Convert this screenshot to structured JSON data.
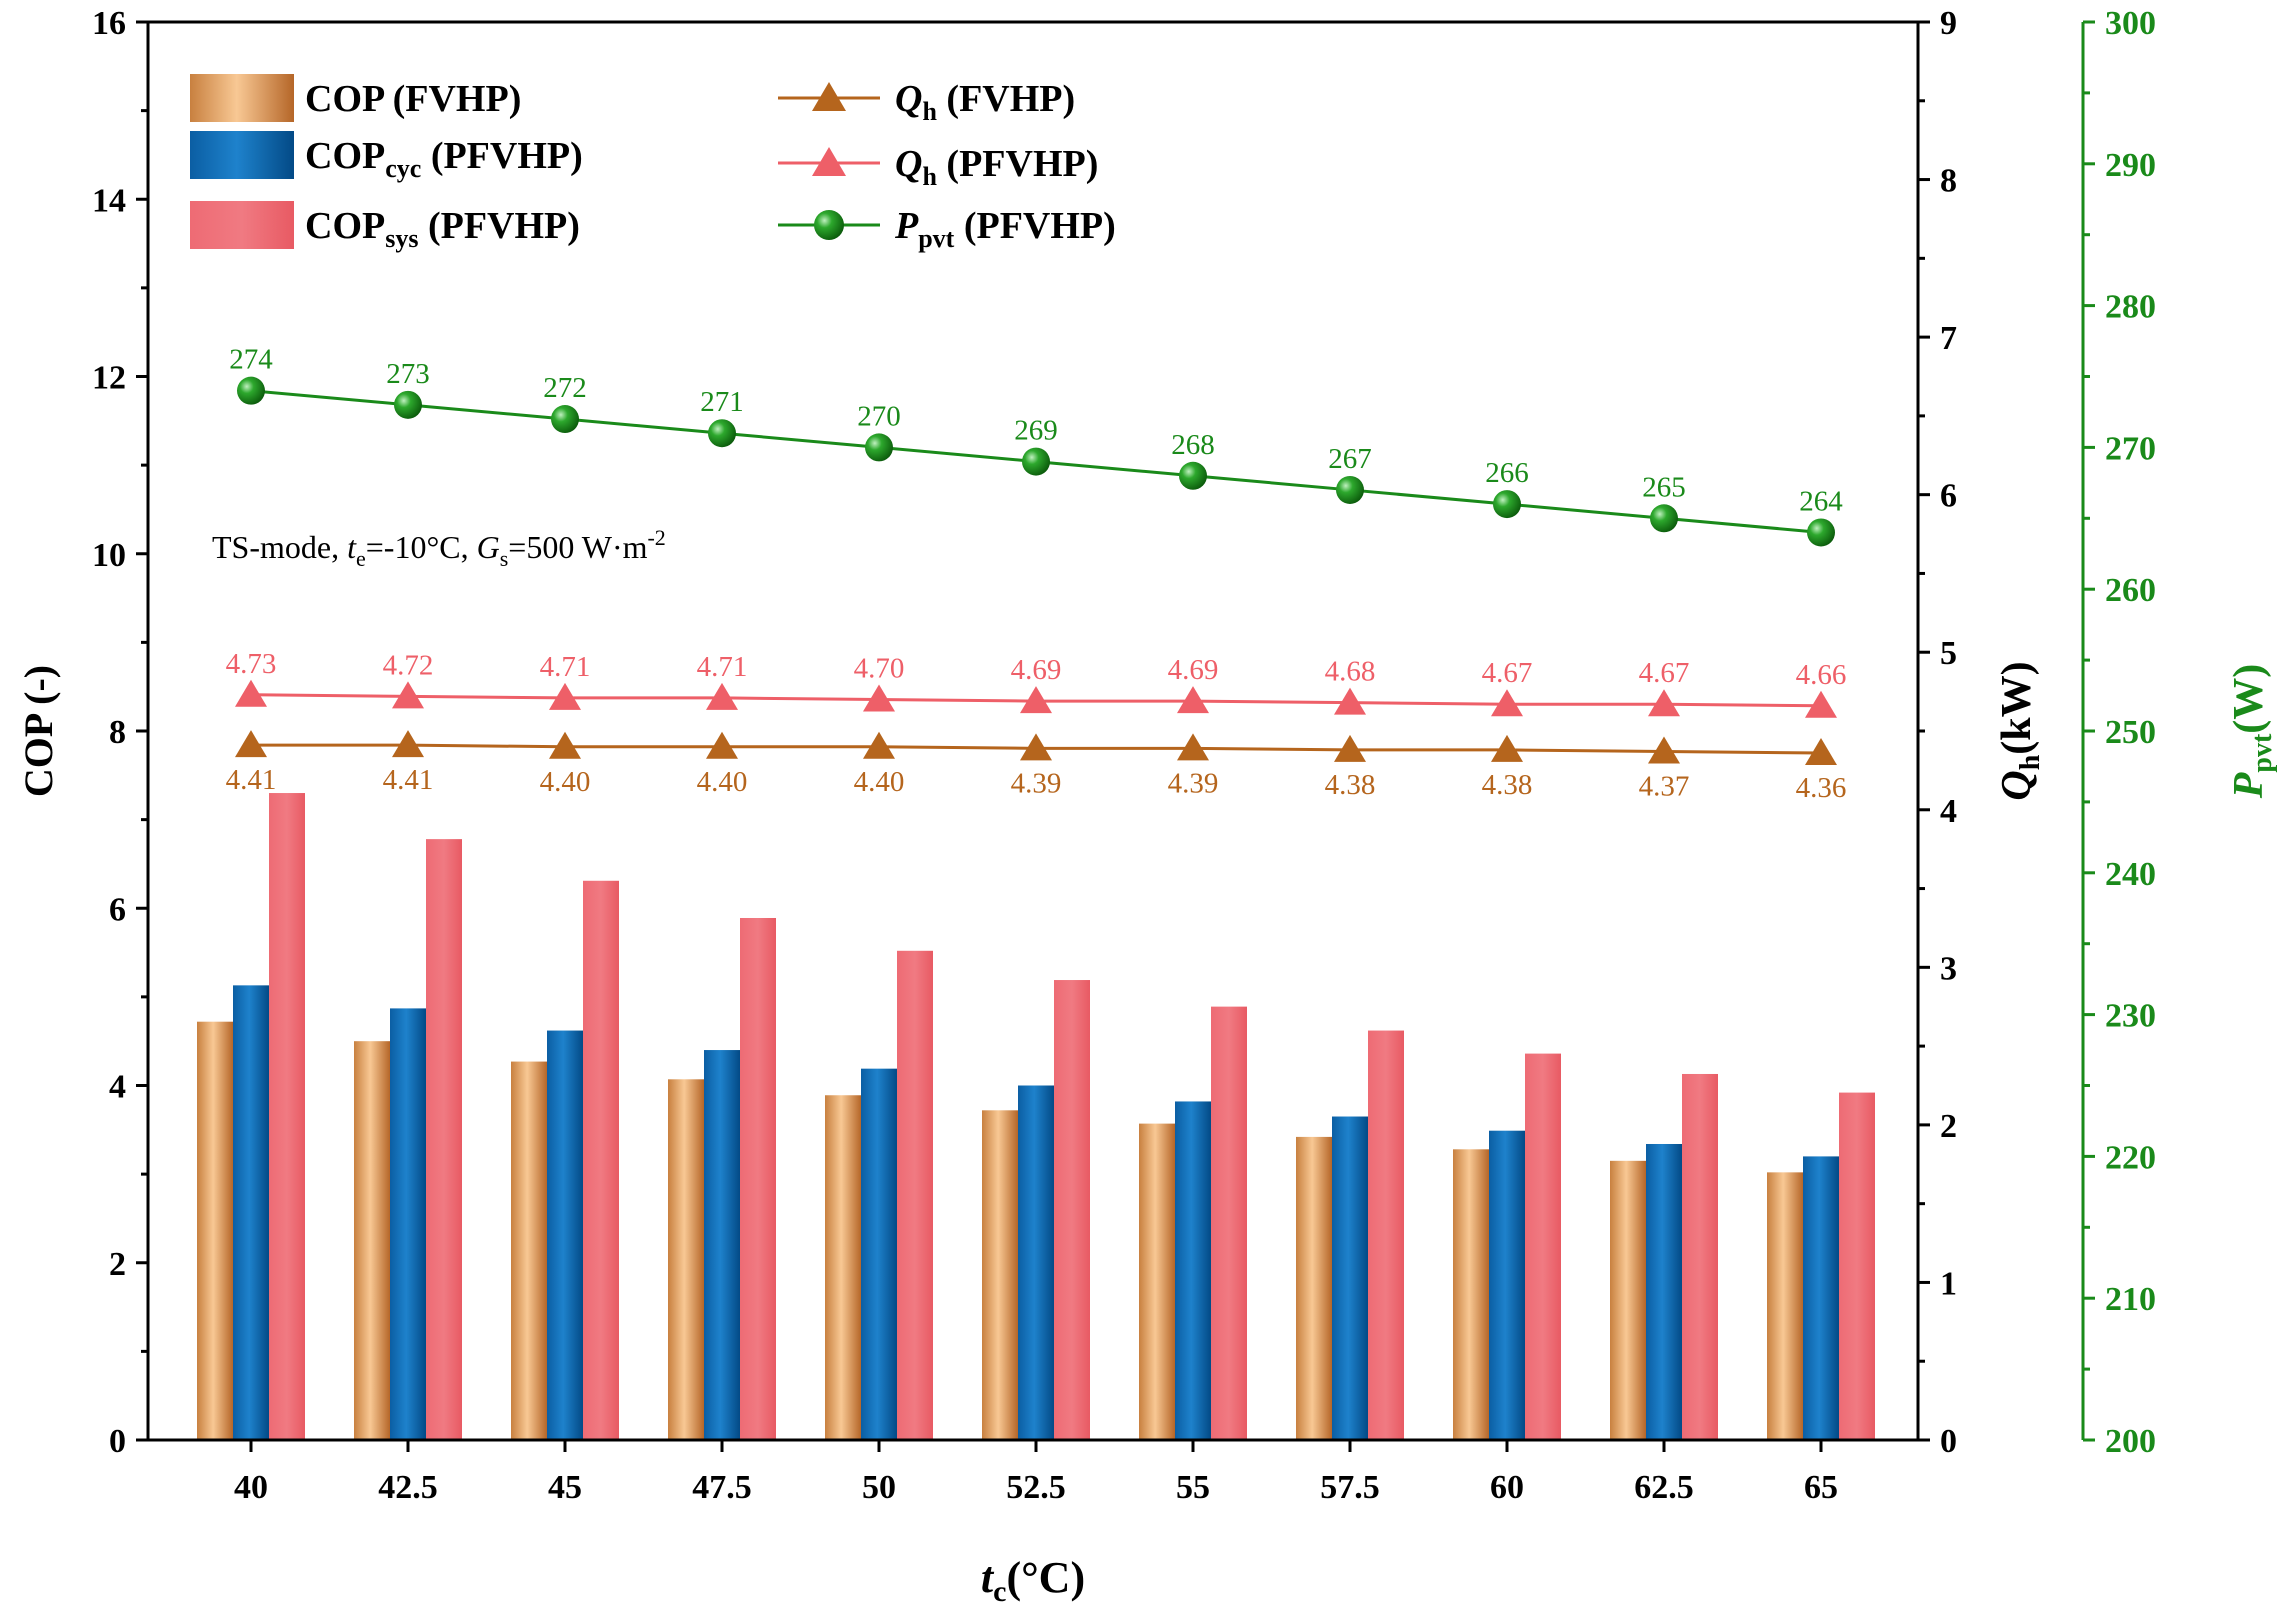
{
  "chart_data": {
    "type": "bar",
    "categories": [
      "40",
      "42.5",
      "45",
      "47.5",
      "50",
      "52.5",
      "55",
      "57.5",
      "60",
      "62.5",
      "65"
    ],
    "xlabel": {
      "main": "t",
      "sub": "c",
      "unit": "(°C)"
    },
    "left_axis": {
      "label": "COP (-)",
      "range": [
        0,
        16
      ],
      "ticks": [
        "0",
        "2",
        "4",
        "6",
        "8",
        "10",
        "12",
        "14",
        "16"
      ]
    },
    "right_axis_1": {
      "label_main": "Q",
      "label_sub": "h",
      "label_unit": "(kW)",
      "range": [
        0,
        9
      ],
      "ticks": [
        "0",
        "1",
        "2",
        "3",
        "4",
        "5",
        "6",
        "7",
        "8",
        "9"
      ]
    },
    "right_axis_2": {
      "label_main": "P",
      "label_sub": "pvt",
      "label_unit": "(W)",
      "range": [
        200,
        300
      ],
      "ticks": [
        "200",
        "210",
        "220",
        "230",
        "240",
        "250",
        "260",
        "270",
        "280",
        "290",
        "300"
      ],
      "color": "#1a8a1a"
    },
    "annotation": {
      "p1": "TS-mode,  ",
      "te": "t",
      "te_sub": "e",
      "te_val": "=-10°C, ",
      "gs": "G",
      "gs_sub": "s",
      "gs_val": "=500 W·m",
      "gs_sup": "-2"
    },
    "bar_series": [
      {
        "legend_main": "COP",
        "legend_sub": "",
        "legend_tail": "  (FVHP)",
        "color_light": "#f6c08e",
        "color_dark": "#b96a2c",
        "values": [
          4.72,
          4.5,
          4.27,
          4.07,
          3.89,
          3.72,
          3.57,
          3.42,
          3.28,
          3.15,
          3.02
        ]
      },
      {
        "legend_main": "COP",
        "legend_sub": "cyc",
        "legend_tail": " (PFVHP)",
        "color_light": "#1a78c2",
        "color_dark": "#034a86",
        "values": [
          5.13,
          4.87,
          4.62,
          4.4,
          4.19,
          4.0,
          3.82,
          3.65,
          3.49,
          3.34,
          3.2
        ]
      },
      {
        "legend_main": "COP",
        "legend_sub": "sys",
        "legend_tail": " (PFVHP)",
        "color_light": "#ee6a73",
        "color_dark": "#e85a63",
        "values": [
          7.3,
          6.78,
          6.31,
          5.89,
          5.52,
          5.19,
          4.89,
          4.62,
          4.36,
          4.13,
          3.92
        ]
      }
    ],
    "line_series": [
      {
        "legend_main": "Q",
        "legend_sub": "h",
        "legend_tail": " (FVHP)",
        "color": "#b5651d",
        "marker": "triangle",
        "values": [
          4.41,
          4.41,
          4.4,
          4.4,
          4.4,
          4.39,
          4.39,
          4.38,
          4.38,
          4.37,
          4.36
        ],
        "labels": [
          "4.41",
          "4.41",
          "4.40",
          "4.40",
          "4.40",
          "4.39",
          "4.39",
          "4.38",
          "4.38",
          "4.37",
          "4.36"
        ]
      },
      {
        "legend_main": "Q",
        "legend_sub": "h",
        "legend_tail": " (PFVHP)",
        "color": "#ee5f68",
        "marker": "triangle",
        "values": [
          4.73,
          4.72,
          4.71,
          4.71,
          4.7,
          4.69,
          4.69,
          4.68,
          4.67,
          4.67,
          4.66
        ],
        "labels": [
          "4.73",
          "4.72",
          "4.71",
          "4.71",
          "4.70",
          "4.69",
          "4.69",
          "4.68",
          "4.67",
          "4.67",
          "4.66"
        ]
      },
      {
        "legend_main": "P",
        "legend_sub": "pvt",
        "legend_tail": " (PFVHP)",
        "color": "#1a8a1a",
        "marker": "sphere",
        "values": [
          274,
          273,
          272,
          271,
          270,
          269,
          268,
          267,
          266,
          265,
          264
        ],
        "labels": [
          "274",
          "273",
          "272",
          "271",
          "270",
          "269",
          "268",
          "267",
          "266",
          "265",
          "264"
        ]
      }
    ]
  }
}
